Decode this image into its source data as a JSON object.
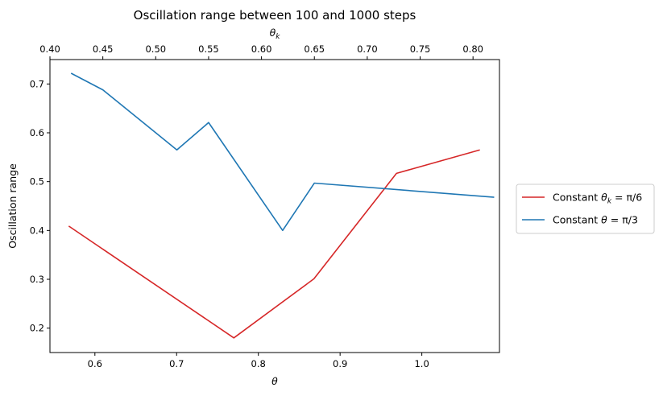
{
  "chart_data": {
    "type": "line",
    "title": "Oscillation range between 100 and 1000 steps",
    "ylabel": "Oscillation range",
    "xlabel_bottom": {
      "symbol": "θ"
    },
    "xlabel_top": {
      "symbol": "θ",
      "sub": "k"
    },
    "xlim_bottom": [
      0.545,
      1.095
    ],
    "xlim_top": [
      0.4,
      0.825
    ],
    "ylim": [
      0.15,
      0.75
    ],
    "x_ticks_bottom": [
      0.6,
      0.7,
      0.8,
      0.9,
      1.0
    ],
    "x_tick_labels_bottom": [
      "0.6",
      "0.7",
      "0.8",
      "0.9",
      "1.0"
    ],
    "x_ticks_top": [
      0.4,
      0.45,
      0.5,
      0.55,
      0.6,
      0.65,
      0.7,
      0.75,
      0.8
    ],
    "x_tick_labels_top": [
      "0.40",
      "0.45",
      "0.50",
      "0.55",
      "0.60",
      "0.65",
      "0.70",
      "0.75",
      "0.80"
    ],
    "y_ticks": [
      0.2,
      0.3,
      0.4,
      0.5,
      0.6,
      0.7
    ],
    "y_tick_labels": [
      "0.2",
      "0.3",
      "0.4",
      "0.5",
      "0.6",
      "0.7"
    ],
    "grid": false,
    "legend_position": "right",
    "series": [
      {
        "legend_prefix": "Constant ",
        "legend_symbol": "θ",
        "legend_sub": "k",
        "legend_suffix": " = π/6",
        "axis": "bottom",
        "color": "#d62728",
        "x": [
          0.568,
          0.77,
          0.868,
          0.969,
          1.071
        ],
        "y": [
          0.409,
          0.18,
          0.301,
          0.517,
          0.565
        ]
      },
      {
        "legend_prefix": "Constant ",
        "legend_symbol": "θ",
        "legend_sub": "",
        "legend_suffix": " = π/3",
        "axis": "top",
        "color": "#1f77b4",
        "x": [
          0.42,
          0.45,
          0.52,
          0.55,
          0.62,
          0.65,
          0.82
        ],
        "y": [
          0.722,
          0.688,
          0.565,
          0.621,
          0.4,
          0.497,
          0.468
        ]
      }
    ]
  }
}
